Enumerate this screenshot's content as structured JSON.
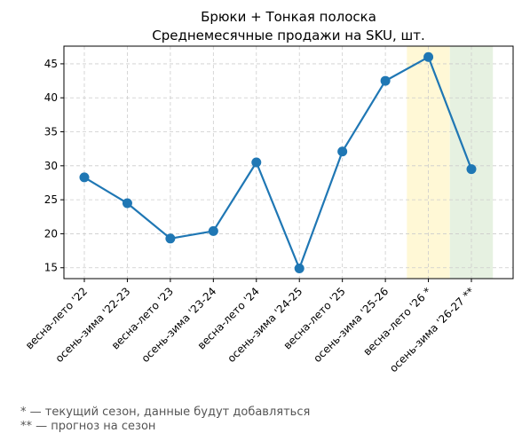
{
  "chart_data": {
    "type": "line",
    "title": "Брюки + Тонкая полоска",
    "subtitle": "Среднемесячные продажи на SKU, шт.",
    "xlabel": "",
    "ylabel": "",
    "categories": [
      "весна-лето '22",
      "осень-зима '22-23",
      "весна-лето '23",
      "осень-зима '23-24",
      "весна-лето '24",
      "осень-зима '24-25",
      "весна-лето '25",
      "осень-зима '25-26",
      "весна-лето '26 *",
      "осень-зима '26-27 **"
    ],
    "series": [
      {
        "values": [
          28.3,
          24.5,
          19.3,
          20.4,
          30.5,
          14.9,
          32.1,
          42.5,
          46.0,
          29.5
        ]
      }
    ],
    "ylim": [
      13.4,
      47.6
    ],
    "yticks": [
      15,
      20,
      25,
      30,
      35,
      40,
      45
    ],
    "grid": true,
    "legend": "none",
    "highlight_spans": [
      {
        "category_index": 8,
        "meaning": "current season",
        "color": "#fff8d6"
      },
      {
        "category_index": 9,
        "meaning": "forecast",
        "color": "#e6f1e1"
      }
    ],
    "colors": {
      "line": "#1f77b4",
      "grid": "#cccccc"
    }
  },
  "footnotes": [
    "* — текущий сезон, данные будут добавляться",
    "** — прогноз на сезон"
  ]
}
